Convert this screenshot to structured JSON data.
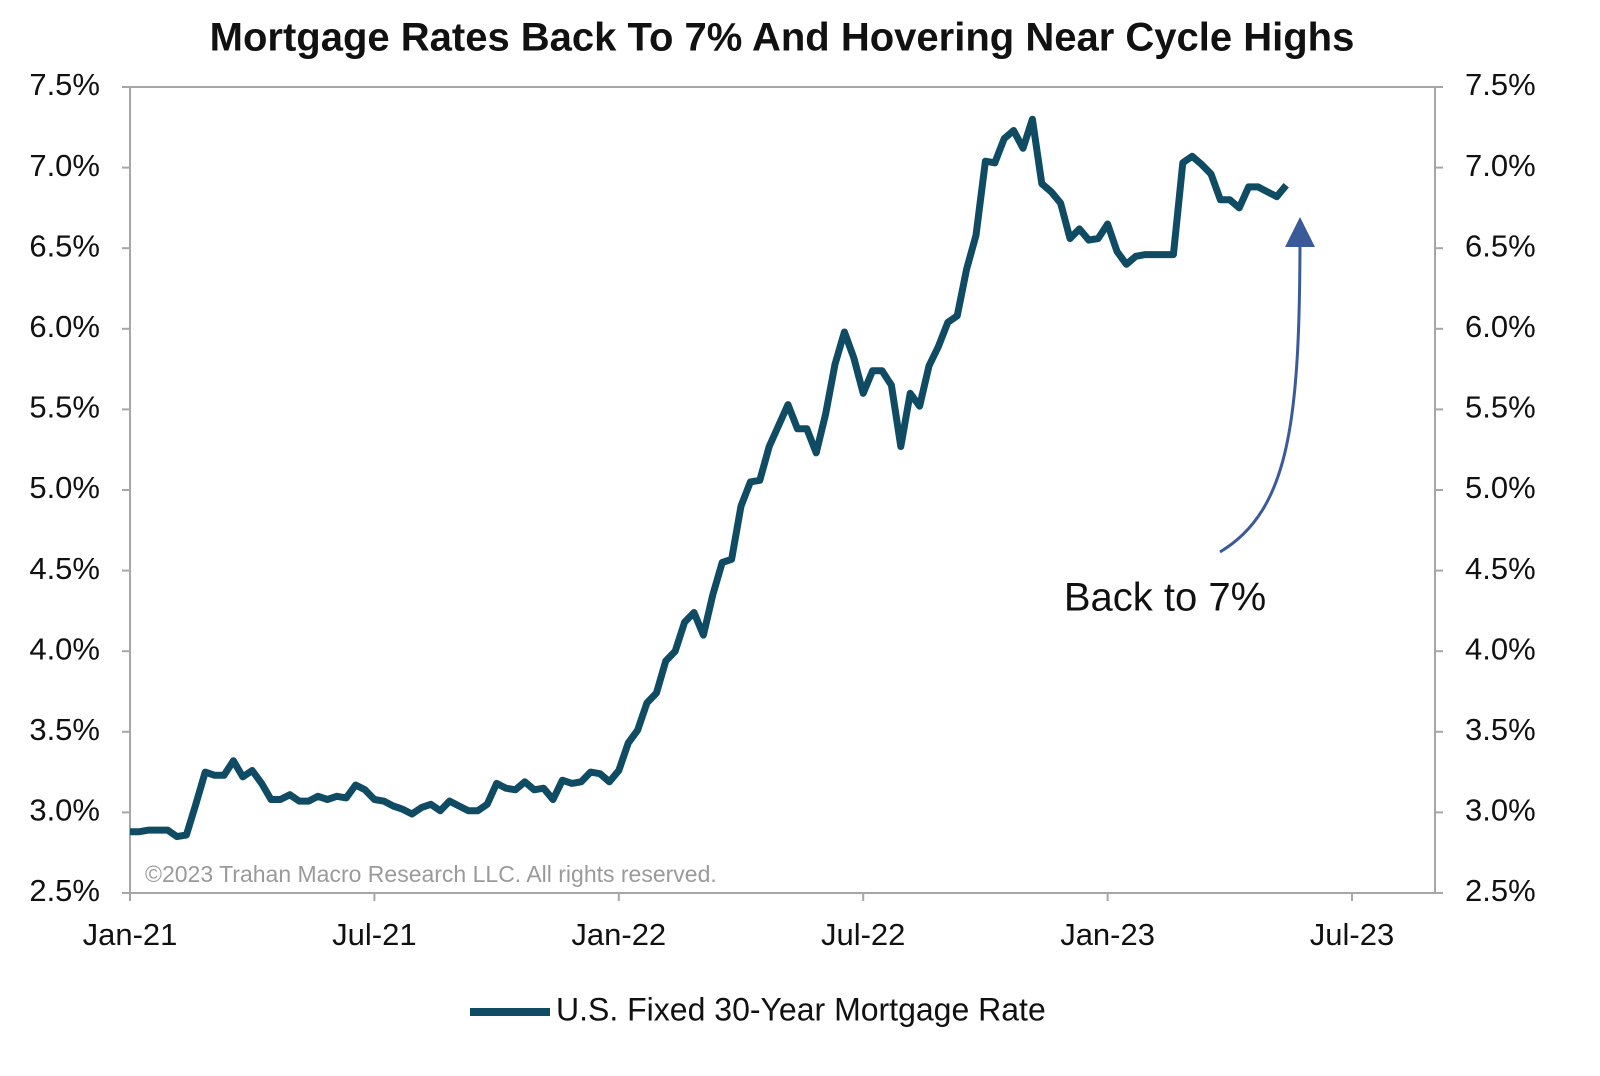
{
  "chart_data": {
    "type": "line",
    "title": "Mortgage Rates Back To 7% And Hovering Near Cycle Highs",
    "watermark": "©2023 Trahan Macro Research LLC. All rights reserved.",
    "annotation": "Back to 7%",
    "categories": [
      "Jan-21",
      null,
      null,
      null,
      null,
      null,
      null,
      null,
      null,
      null,
      null,
      null,
      null,
      null,
      null,
      null,
      null,
      null,
      null,
      null,
      null,
      null,
      null,
      null,
      null,
      null,
      "Jul-21",
      null,
      null,
      null,
      null,
      null,
      null,
      null,
      null,
      null,
      null,
      null,
      null,
      null,
      null,
      null,
      null,
      null,
      null,
      null,
      null,
      null,
      null,
      null,
      null,
      null,
      "Jan-22",
      null,
      null,
      null,
      null,
      null,
      null,
      null,
      null,
      null,
      null,
      null,
      null,
      null,
      null,
      null,
      null,
      null,
      null,
      null,
      null,
      null,
      null,
      null,
      null,
      null,
      "Jul-22",
      null,
      null,
      null,
      null,
      null,
      null,
      null,
      null,
      null,
      null,
      null,
      null,
      null,
      null,
      null,
      null,
      null,
      null,
      null,
      null,
      null,
      null,
      null,
      null,
      null,
      "Jan-23",
      null,
      null,
      null,
      null,
      null,
      null,
      null,
      null,
      null,
      null,
      null,
      null,
      null,
      null,
      null,
      null,
      null,
      null,
      null,
      null,
      null,
      null,
      null,
      null,
      null,
      "Jul-23"
    ],
    "series": [
      {
        "name": "U.S. Fixed 30-Year Mortgage Rate",
        "color": "#0f4c63",
        "values": [
          2.88,
          2.88,
          2.89,
          2.89,
          2.89,
          2.85,
          2.86,
          3.05,
          3.25,
          3.23,
          3.23,
          3.32,
          3.22,
          3.26,
          3.18,
          3.08,
          3.08,
          3.11,
          3.07,
          3.07,
          3.1,
          3.08,
          3.1,
          3.09,
          3.17,
          3.14,
          3.08,
          3.07,
          3.04,
          3.02,
          2.99,
          3.03,
          3.05,
          3.01,
          3.07,
          3.04,
          3.01,
          3.01,
          3.05,
          3.18,
          3.15,
          3.14,
          3.19,
          3.14,
          3.15,
          3.08,
          3.2,
          3.18,
          3.19,
          3.25,
          3.24,
          3.19,
          3.26,
          3.43,
          3.51,
          3.68,
          3.74,
          3.94,
          4.0,
          4.18,
          4.24,
          4.1,
          4.35,
          4.55,
          4.57,
          4.9,
          5.05,
          5.06,
          5.27,
          5.4,
          5.53,
          5.38,
          5.38,
          5.23,
          5.47,
          5.78,
          5.98,
          5.82,
          5.6,
          5.74,
          5.74,
          5.65,
          5.27,
          5.6,
          5.52,
          5.77,
          5.89,
          6.04,
          6.08,
          6.37,
          6.58,
          7.04,
          7.03,
          7.18,
          7.23,
          7.12,
          7.3,
          6.9,
          6.85,
          6.78,
          6.56,
          6.62,
          6.55,
          6.56,
          6.65,
          6.48,
          6.4,
          6.45,
          6.46,
          6.46,
          6.46,
          6.46,
          7.03,
          7.07,
          7.02,
          6.96,
          6.8,
          6.8,
          6.75,
          6.88,
          6.88,
          6.85,
          6.82,
          6.89,
          null,
          null,
          null,
          null,
          null,
          null,
          null
        ]
      }
    ],
    "ylim": [
      2.5,
      7.5
    ],
    "yticks": [
      {
        "value": 2.5,
        "label": "2.5%"
      },
      {
        "value": 3.0,
        "label": "3.0%"
      },
      {
        "value": 3.5,
        "label": "3.5%"
      },
      {
        "value": 4.0,
        "label": "4.0%"
      },
      {
        "value": 4.5,
        "label": "4.5%"
      },
      {
        "value": 5.0,
        "label": "5.0%"
      },
      {
        "value": 5.5,
        "label": "5.5%"
      },
      {
        "value": 6.0,
        "label": "6.0%"
      },
      {
        "value": 6.5,
        "label": "6.5%"
      },
      {
        "value": 7.0,
        "label": "7.0%"
      },
      {
        "value": 7.5,
        "label": "7.5%"
      }
    ],
    "legend": "bottom"
  }
}
